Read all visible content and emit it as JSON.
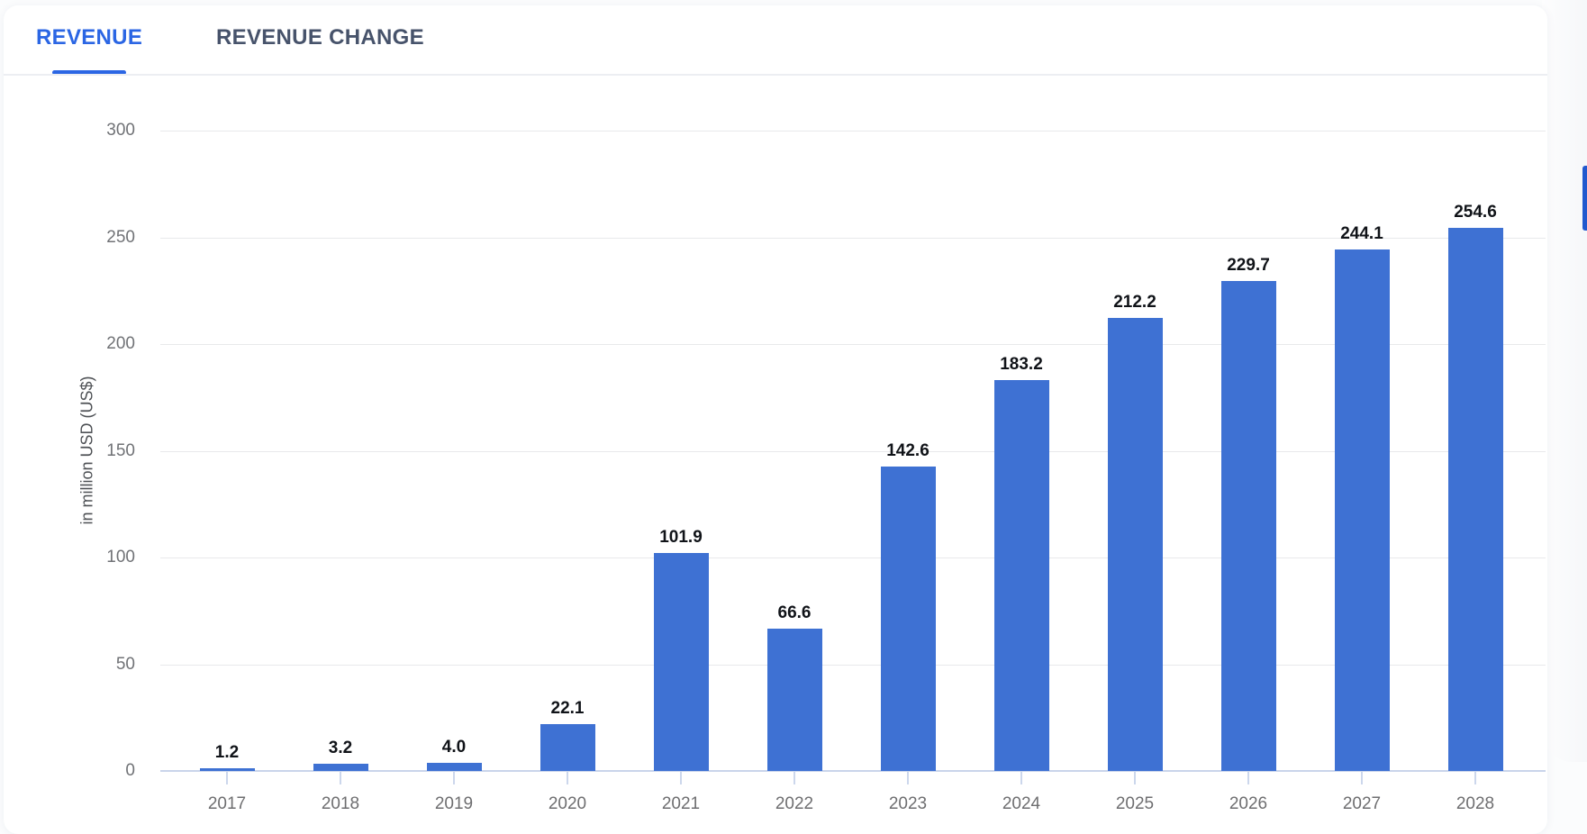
{
  "tabs": [
    {
      "label": "REVENUE",
      "active": true
    },
    {
      "label": "REVENUE CHANGE",
      "active": false
    }
  ],
  "chart_data": {
    "type": "bar",
    "title": "",
    "categories": [
      "2017",
      "2018",
      "2019",
      "2020",
      "2021",
      "2022",
      "2023",
      "2024",
      "2025",
      "2026",
      "2027",
      "2028"
    ],
    "values": [
      1.2,
      3.2,
      4.0,
      22.1,
      101.9,
      66.6,
      142.6,
      183.2,
      212.2,
      229.7,
      244.1,
      254.6
    ],
    "value_labels": [
      "1.2",
      "3.2",
      "4.0",
      "22.1",
      "101.9",
      "66.6",
      "142.6",
      "183.2",
      "212.2",
      "229.7",
      "244.1",
      "254.6"
    ],
    "xlabel": "",
    "ylabel": "in million USD (US$)",
    "yticks": [
      0,
      50,
      100,
      150,
      200,
      250,
      300
    ],
    "ylim": [
      0,
      300
    ],
    "grid": true,
    "legend": "none"
  },
  "colors": {
    "bar": "#3e71d3",
    "active_tab": "#2b66e4",
    "inactive_tab": "#47536b",
    "gridline": "#e8e9eb",
    "axis_line": "#c9d4ea",
    "value_label": "#101318",
    "tick_label": "#6e6e70",
    "scroll_thumb": "#2158ce"
  }
}
